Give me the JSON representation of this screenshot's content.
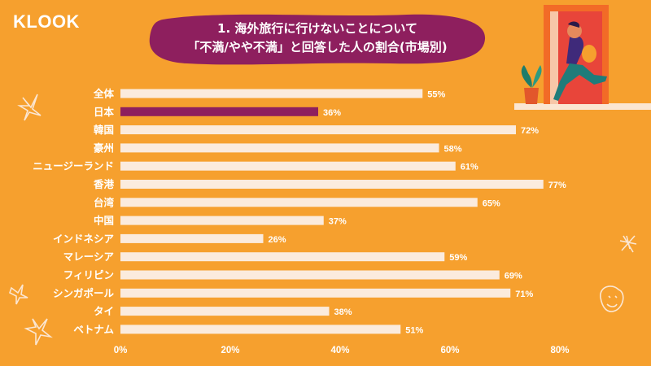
{
  "brand": {
    "logo_text": "KLOOK"
  },
  "title": {
    "line1": "1. 海外旅行に行けないことについて",
    "line2": "「不満/やや不満」と回答した人の割合(市場別)"
  },
  "colors": {
    "background": "#F6A02E",
    "bar": "#FBEBDD",
    "highlight_bar": "#8E1F5E",
    "title_blob": "#8E1F5E",
    "text": "#ffffff"
  },
  "chart_data": {
    "type": "bar",
    "orientation": "horizontal",
    "title": "1. 海外旅行に行けないことについて「不満/やや不満」と回答した人の割合(市場別)",
    "categories": [
      "全体",
      "日本",
      "韓国",
      "豪州",
      "ニュージーランド",
      "香港",
      "台湾",
      "中国",
      "インドネシア",
      "マレーシア",
      "フィリピン",
      "シンガポール",
      "タイ",
      "ベトナム"
    ],
    "values": [
      55,
      36,
      72,
      58,
      61,
      77,
      65,
      37,
      26,
      59,
      69,
      71,
      38,
      51
    ],
    "value_labels": [
      "55%",
      "36%",
      "72%",
      "58%",
      "61%",
      "77%",
      "65%",
      "37%",
      "26%",
      "59%",
      "69%",
      "71%",
      "38%",
      "51%"
    ],
    "highlight_category": "日本",
    "xlim": [
      0,
      80
    ],
    "x_ticks": [
      0,
      20,
      40,
      60,
      80
    ],
    "x_tick_labels": [
      "0%",
      "20%",
      "40%",
      "60%",
      "80%"
    ],
    "xlabel": "",
    "ylabel": "",
    "grid": false,
    "legend": "none"
  }
}
